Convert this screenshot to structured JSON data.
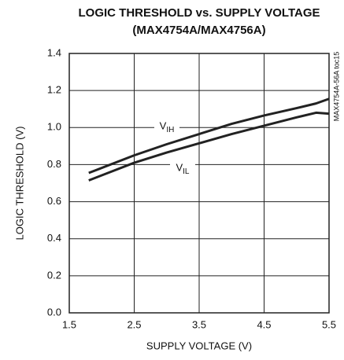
{
  "chart_data": {
    "type": "line",
    "title": "LOGIC THRESHOLD vs. SUPPLY VOLTAGE",
    "subtitle": "(MAX4754A/MAX4756A)",
    "x_label": "SUPPLY VOLTAGE (V)",
    "y_label": "LOGIC THRESHOLD (V)",
    "annotation": "MAX4754A-56A toc15",
    "x": [
      1.8,
      2.5,
      3.0,
      3.5,
      4.0,
      4.5,
      5.0,
      5.3,
      5.5
    ],
    "series": [
      {
        "name": "VIH",
        "color": "#222222",
        "values": [
          0.755,
          0.85,
          0.91,
          0.965,
          1.02,
          1.065,
          1.105,
          1.13,
          1.155
        ]
      },
      {
        "name": "VIL",
        "color": "#222222",
        "values": [
          0.715,
          0.81,
          0.865,
          0.915,
          0.965,
          1.01,
          1.055,
          1.08,
          1.075
        ]
      }
    ],
    "xlim": [
      1.5,
      5.5
    ],
    "xticks": [
      1.5,
      2.5,
      3.5,
      4.5,
      5.5
    ],
    "ylim": [
      0,
      1.4
    ],
    "yticks": [
      {
        "value": 0,
        "label": "0.0"
      },
      0.2,
      0.4,
      0.6,
      0.8,
      {
        "value": 1,
        "label": "1.0"
      },
      1.2,
      1.4
    ],
    "grid": true
  }
}
